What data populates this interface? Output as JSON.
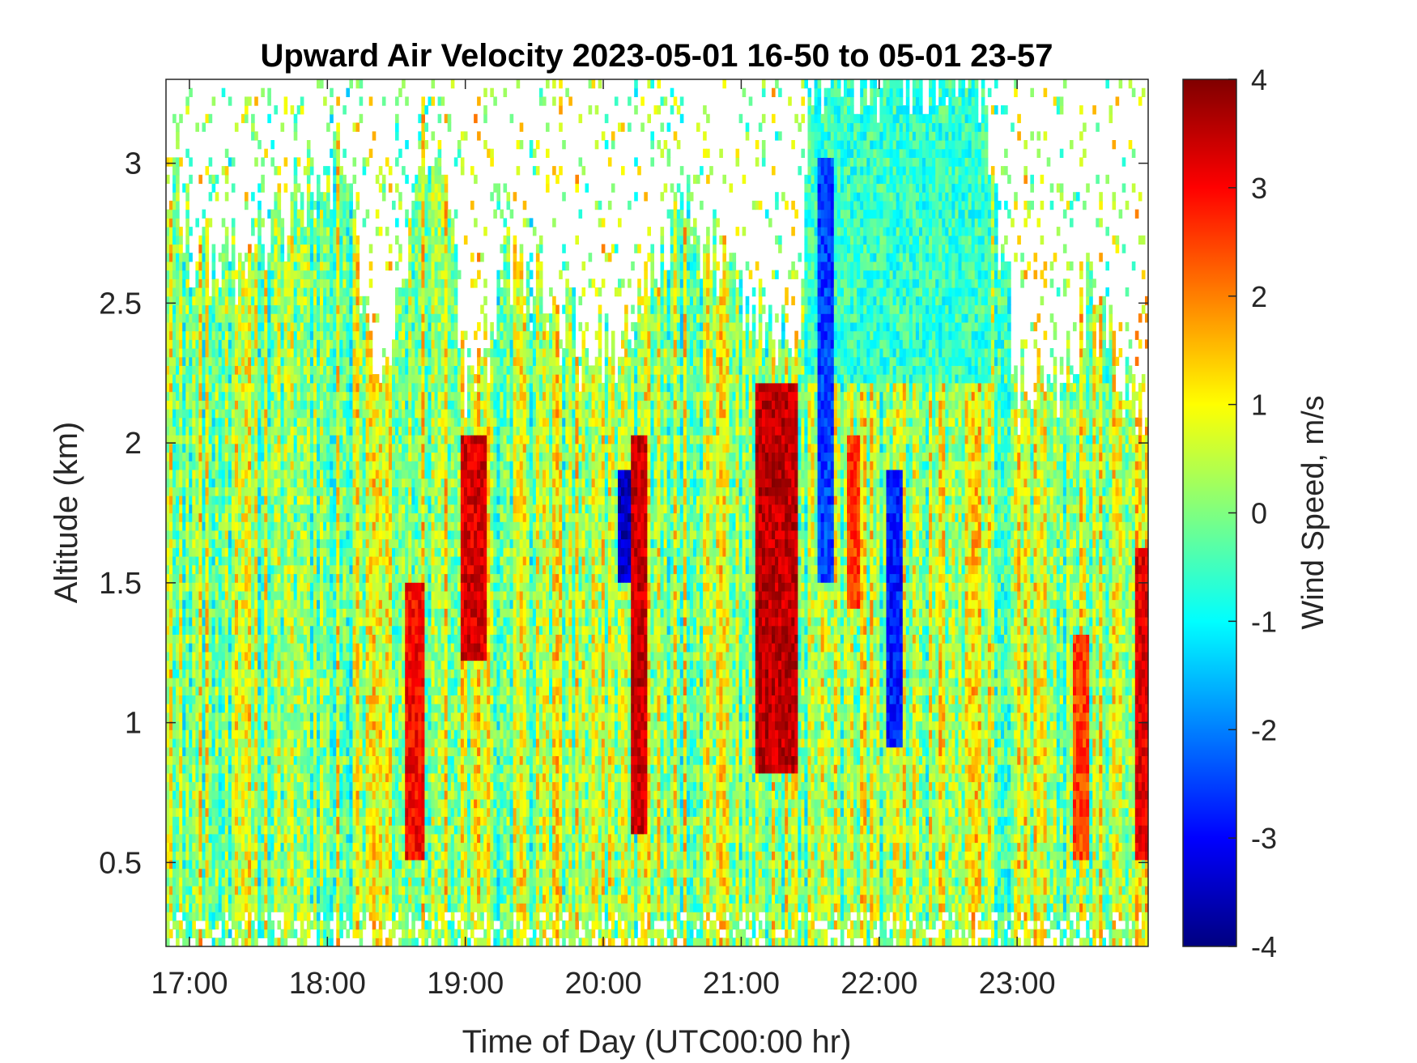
{
  "chart_data": {
    "type": "heatmap",
    "title": "Upward Air Velocity 2023-05-01 16-50 to 05-01 23-57",
    "xlabel": "Time of Day (UTC00:00 hr)",
    "ylabel": "Altitude (km)",
    "colorbar_label": "Wind Speed, m/s",
    "colormap": "jet",
    "xlim_hours": [
      16.83,
      23.95
    ],
    "ylim_km": [
      0.2,
      3.3
    ],
    "clim": [
      -4,
      4
    ],
    "x_ticks": [
      {
        "value": 17,
        "label": "17:00"
      },
      {
        "value": 18,
        "label": "18:00"
      },
      {
        "value": 19,
        "label": "19:00"
      },
      {
        "value": 20,
        "label": "20:00"
      },
      {
        "value": 21,
        "label": "21:00"
      },
      {
        "value": 22,
        "label": "22:00"
      },
      {
        "value": 23,
        "label": "23:00"
      }
    ],
    "y_ticks": [
      {
        "value": 0.5,
        "label": "0.5"
      },
      {
        "value": 1,
        "label": "1"
      },
      {
        "value": 1.5,
        "label": "1.5"
      },
      {
        "value": 2,
        "label": "2"
      },
      {
        "value": 2.5,
        "label": "2.5"
      },
      {
        "value": 3,
        "label": "3"
      }
    ],
    "colorbar_ticks": [
      {
        "value": 4,
        "label": "4"
      },
      {
        "value": 3,
        "label": "3"
      },
      {
        "value": 2,
        "label": "2"
      },
      {
        "value": 1,
        "label": "1"
      },
      {
        "value": 0,
        "label": "0"
      },
      {
        "value": -1,
        "label": "-1"
      },
      {
        "value": -2,
        "label": "-2"
      },
      {
        "value": -3,
        "label": "-3"
      },
      {
        "value": -4,
        "label": "-4"
      }
    ],
    "grid": false,
    "data_top_km_profile": [
      {
        "t": 16.85,
        "top": 2.9
      },
      {
        "t": 17.0,
        "top": 2.7
      },
      {
        "t": 17.3,
        "top": 2.6
      },
      {
        "t": 17.6,
        "top": 2.75
      },
      {
        "t": 17.85,
        "top": 2.9
      },
      {
        "t": 18.1,
        "top": 3.0
      },
      {
        "t": 18.3,
        "top": 2.3
      },
      {
        "t": 18.5,
        "top": 2.4
      },
      {
        "t": 18.65,
        "top": 3.1
      },
      {
        "t": 18.85,
        "top": 2.9
      },
      {
        "t": 19.0,
        "top": 2.1
      },
      {
        "t": 19.3,
        "top": 2.6
      },
      {
        "t": 19.6,
        "top": 2.5
      },
      {
        "t": 19.9,
        "top": 2.3
      },
      {
        "t": 20.2,
        "top": 2.4
      },
      {
        "t": 20.5,
        "top": 2.8
      },
      {
        "t": 20.8,
        "top": 2.7
      },
      {
        "t": 21.1,
        "top": 2.4
      },
      {
        "t": 21.4,
        "top": 2.3
      },
      {
        "t": 21.5,
        "top": 3.3
      },
      {
        "t": 22.0,
        "top": 3.3
      },
      {
        "t": 22.4,
        "top": 3.3
      },
      {
        "t": 22.7,
        "top": 3.3
      },
      {
        "t": 23.0,
        "top": 2.2
      },
      {
        "t": 23.3,
        "top": 2.1
      },
      {
        "t": 23.5,
        "top": 2.5
      },
      {
        "t": 23.7,
        "top": 2.3
      },
      {
        "t": 23.95,
        "top": 2.0
      }
    ],
    "velocity_features": [
      {
        "t_start": 18.95,
        "t_end": 19.15,
        "alt_min": 1.2,
        "alt_max": 2.0,
        "w": 3.3
      },
      {
        "t_start": 18.55,
        "t_end": 18.7,
        "alt_min": 0.5,
        "alt_max": 1.5,
        "w": 3.0
      },
      {
        "t_start": 20.2,
        "t_end": 20.3,
        "alt_min": 0.6,
        "alt_max": 2.0,
        "w": 3.4
      },
      {
        "t_start": 21.1,
        "t_end": 21.4,
        "alt_min": 0.8,
        "alt_max": 2.2,
        "w": 3.5
      },
      {
        "t_start": 21.75,
        "t_end": 21.85,
        "alt_min": 1.4,
        "alt_max": 2.0,
        "w": 2.6
      },
      {
        "t_start": 20.1,
        "t_end": 20.2,
        "alt_min": 1.5,
        "alt_max": 1.9,
        "w": -3.5
      },
      {
        "t_start": 21.55,
        "t_end": 21.65,
        "alt_min": 1.5,
        "alt_max": 3.0,
        "w": -2.5
      },
      {
        "t_start": 22.05,
        "t_end": 22.15,
        "alt_min": 0.9,
        "alt_max": 1.9,
        "w": -2.8
      },
      {
        "t_start": 23.85,
        "t_end": 23.95,
        "alt_min": 0.5,
        "alt_max": 1.6,
        "w": 3.2
      },
      {
        "t_start": 23.4,
        "t_end": 23.5,
        "alt_min": 0.5,
        "alt_max": 1.3,
        "w": 2.5
      }
    ]
  }
}
